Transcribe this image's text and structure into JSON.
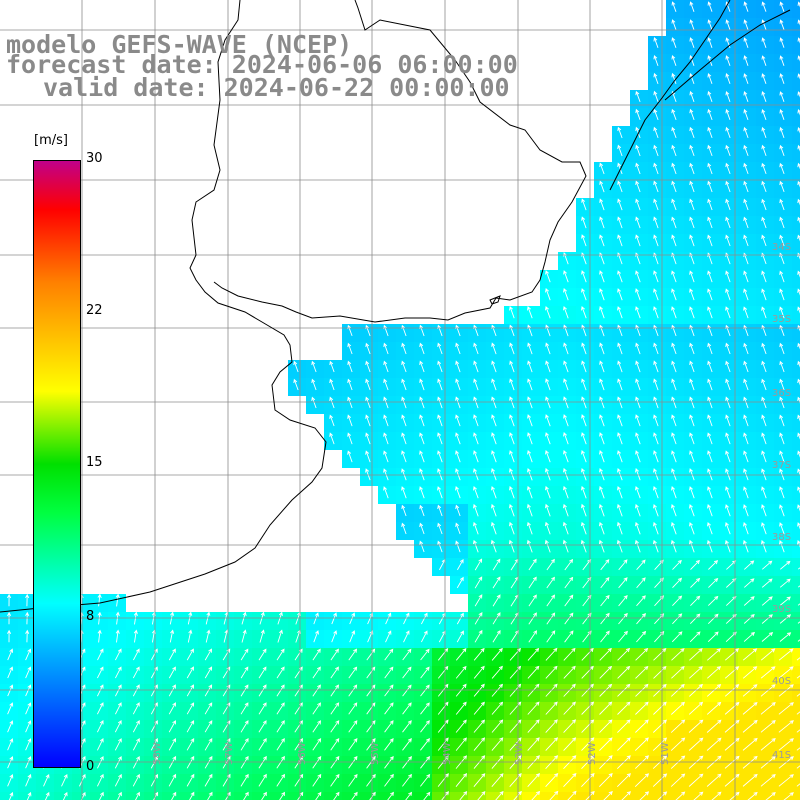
{
  "titles": {
    "line1": "modelo GEFS-WAVE (NCEP)",
    "line2": "forecast date: 2024-06-06 06:00:00",
    "line3": "valid date: 2024-06-22 00:00:00"
  },
  "colorbar": {
    "unit": "[m/s]",
    "ticks": [
      "30",
      "22",
      "15",
      "8",
      "0"
    ],
    "colors": [
      "#0000ff",
      "#00a0ff",
      "#00ffff",
      "#00ff40",
      "#00e000",
      "#ffff00",
      "#ff8000",
      "#ff0000",
      "#c0008a"
    ]
  },
  "grid_labels": {
    "lon": [
      "58W",
      "57W",
      "56W",
      "55W",
      "54W",
      "53W",
      "52W",
      "51W"
    ],
    "lat": [
      "34S",
      "35S",
      "36S",
      "37S",
      "38S",
      "39S",
      "40S",
      "41S"
    ]
  },
  "colors": {
    "land": "#ffffff",
    "coast": "#000000",
    "grid": "#9a9a9a",
    "arrow": "#ffffff",
    "title": "#8a8a8a"
  }
}
